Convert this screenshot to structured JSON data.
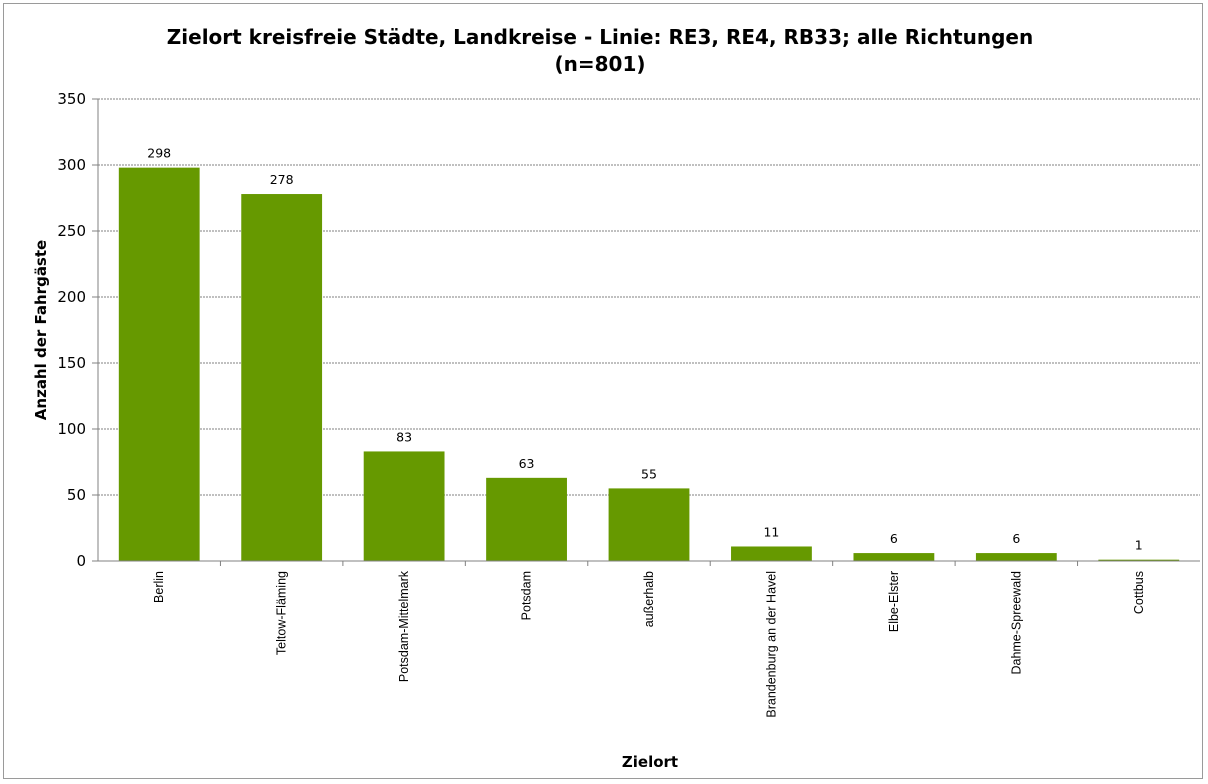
{
  "chart_data": {
    "type": "bar",
    "title_line1": "Zielort kreisfreie Städte, Landkreise - Linie: RE3, RE4, RB33; alle Richtungen",
    "title_line2": "(n=801)",
    "xlabel": "Zielort",
    "ylabel": "Anzahl der Fahrgäste",
    "ylim": [
      0,
      350
    ],
    "yticks": [
      0,
      50,
      100,
      150,
      200,
      250,
      300,
      350
    ],
    "grid": true,
    "bar_color": "#669900",
    "categories": [
      "Berlin",
      "Teltow-Fläming",
      "Potsdam-Mittelmark",
      "Potsdam",
      "außerhalb",
      "Brandenburg an der Havel",
      "Elbe-Elster",
      "Dahme-Spreewald",
      "Cottbus"
    ],
    "values": [
      298,
      278,
      83,
      63,
      55,
      11,
      6,
      6,
      1
    ]
  }
}
